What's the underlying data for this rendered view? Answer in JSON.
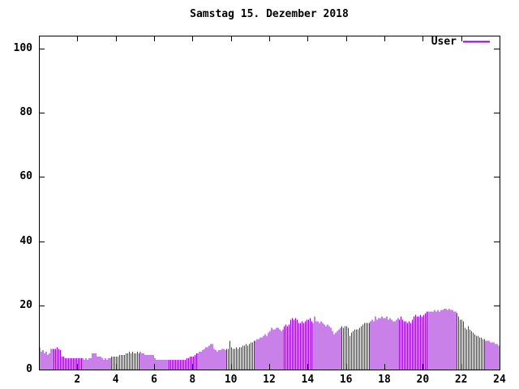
{
  "chart_data": {
    "type": "bar",
    "title": "Samstag 15. Dezember 2018",
    "xlabel": "",
    "ylabel": "",
    "x_unit": "hour-of-day",
    "interval_minutes": 5,
    "xlim": [
      0,
      24
    ],
    "ylim": [
      0,
      100
    ],
    "xticks": [
      2,
      4,
      6,
      8,
      10,
      12,
      14,
      16,
      18,
      20,
      22,
      24
    ],
    "yticks": [
      0,
      20,
      40,
      60,
      80,
      100
    ],
    "grid": false,
    "legend_position": "top-right",
    "series": [
      {
        "name": "User",
        "color": "#9400d3",
        "values": [
          7,
          5.5,
          6,
          5,
          5.5,
          4.5,
          5,
          6.5,
          6.5,
          6.5,
          6.5,
          7,
          6.5,
          6,
          4,
          4,
          3.5,
          3.5,
          3.5,
          3.5,
          3.5,
          3.5,
          3.5,
          3.5,
          3.5,
          3.5,
          3.5,
          3.5,
          3,
          3.5,
          3,
          3.5,
          3.5,
          5,
          5,
          5,
          4,
          4,
          4,
          3.5,
          3,
          3.5,
          3,
          3.5,
          3.5,
          4,
          4,
          4,
          4,
          4,
          4.5,
          4.5,
          4.5,
          4.5,
          5,
          5,
          5.5,
          5,
          5.5,
          5,
          5,
          5.5,
          5,
          5.5,
          5,
          5,
          4.5,
          4.5,
          4.5,
          4.5,
          4.5,
          4.5,
          3.5,
          3,
          3,
          3,
          3,
          3,
          3,
          3,
          3,
          3,
          3,
          3,
          3,
          3,
          3,
          3,
          3,
          3,
          3,
          3,
          3.5,
          3.5,
          4,
          4,
          4,
          4.5,
          5,
          5,
          5.5,
          5.5,
          6,
          6.5,
          7,
          7,
          7.5,
          8,
          8,
          6.5,
          6,
          5.5,
          6,
          6,
          6.5,
          6.5,
          6,
          6.5,
          6.5,
          9,
          7,
          6.5,
          6.5,
          7,
          6.5,
          7,
          7,
          7.5,
          7.5,
          8,
          7.5,
          8,
          8.5,
          8.5,
          9,
          9,
          9.5,
          9.5,
          10,
          10,
          10.5,
          11,
          10.5,
          11.5,
          12,
          13,
          12.5,
          12.5,
          13,
          13,
          12.5,
          12,
          12.5,
          13.5,
          14,
          13.5,
          14,
          15.5,
          16,
          15.5,
          16,
          15.5,
          14.5,
          14.5,
          15,
          14.5,
          15,
          15.5,
          15.5,
          16,
          15,
          14.5,
          16.5,
          15,
          15,
          14.5,
          15,
          14.5,
          14,
          13.5,
          14,
          13.5,
          13,
          12,
          11,
          11.5,
          12,
          12.5,
          13,
          13.5,
          13,
          13.5,
          13.5,
          13,
          10.5,
          11.5,
          12,
          12.5,
          12.5,
          12.5,
          13,
          13.5,
          14,
          14.5,
          14.5,
          14.5,
          14.5,
          15,
          15.5,
          15,
          16.5,
          15.5,
          16,
          16,
          16.5,
          16,
          16,
          16.5,
          15.5,
          16,
          15.5,
          15,
          15,
          15.5,
          16,
          15.5,
          16.5,
          15.5,
          15,
          15,
          14.5,
          15,
          14.5,
          15.5,
          16.5,
          17,
          16.5,
          16.5,
          17,
          16.5,
          17,
          17.5,
          18,
          18,
          18,
          18,
          18,
          18.5,
          18,
          18.5,
          18,
          18.5,
          18.5,
          19,
          19,
          18.5,
          19,
          18.5,
          18.5,
          18,
          18,
          17.5,
          16.5,
          15.5,
          15.5,
          15,
          13,
          12.5,
          13.5,
          12.5,
          12,
          11.5,
          11,
          10.5,
          10.5,
          10,
          10,
          9.5,
          9.5,
          9,
          9,
          9,
          8.5,
          8.5,
          8.5,
          8,
          8,
          7.5
        ]
      }
    ]
  },
  "legend": {
    "label": "User"
  },
  "colors": {
    "bar": "#9400d3",
    "axis": "#000000",
    "background": "#ffffff",
    "text": "#000000"
  }
}
